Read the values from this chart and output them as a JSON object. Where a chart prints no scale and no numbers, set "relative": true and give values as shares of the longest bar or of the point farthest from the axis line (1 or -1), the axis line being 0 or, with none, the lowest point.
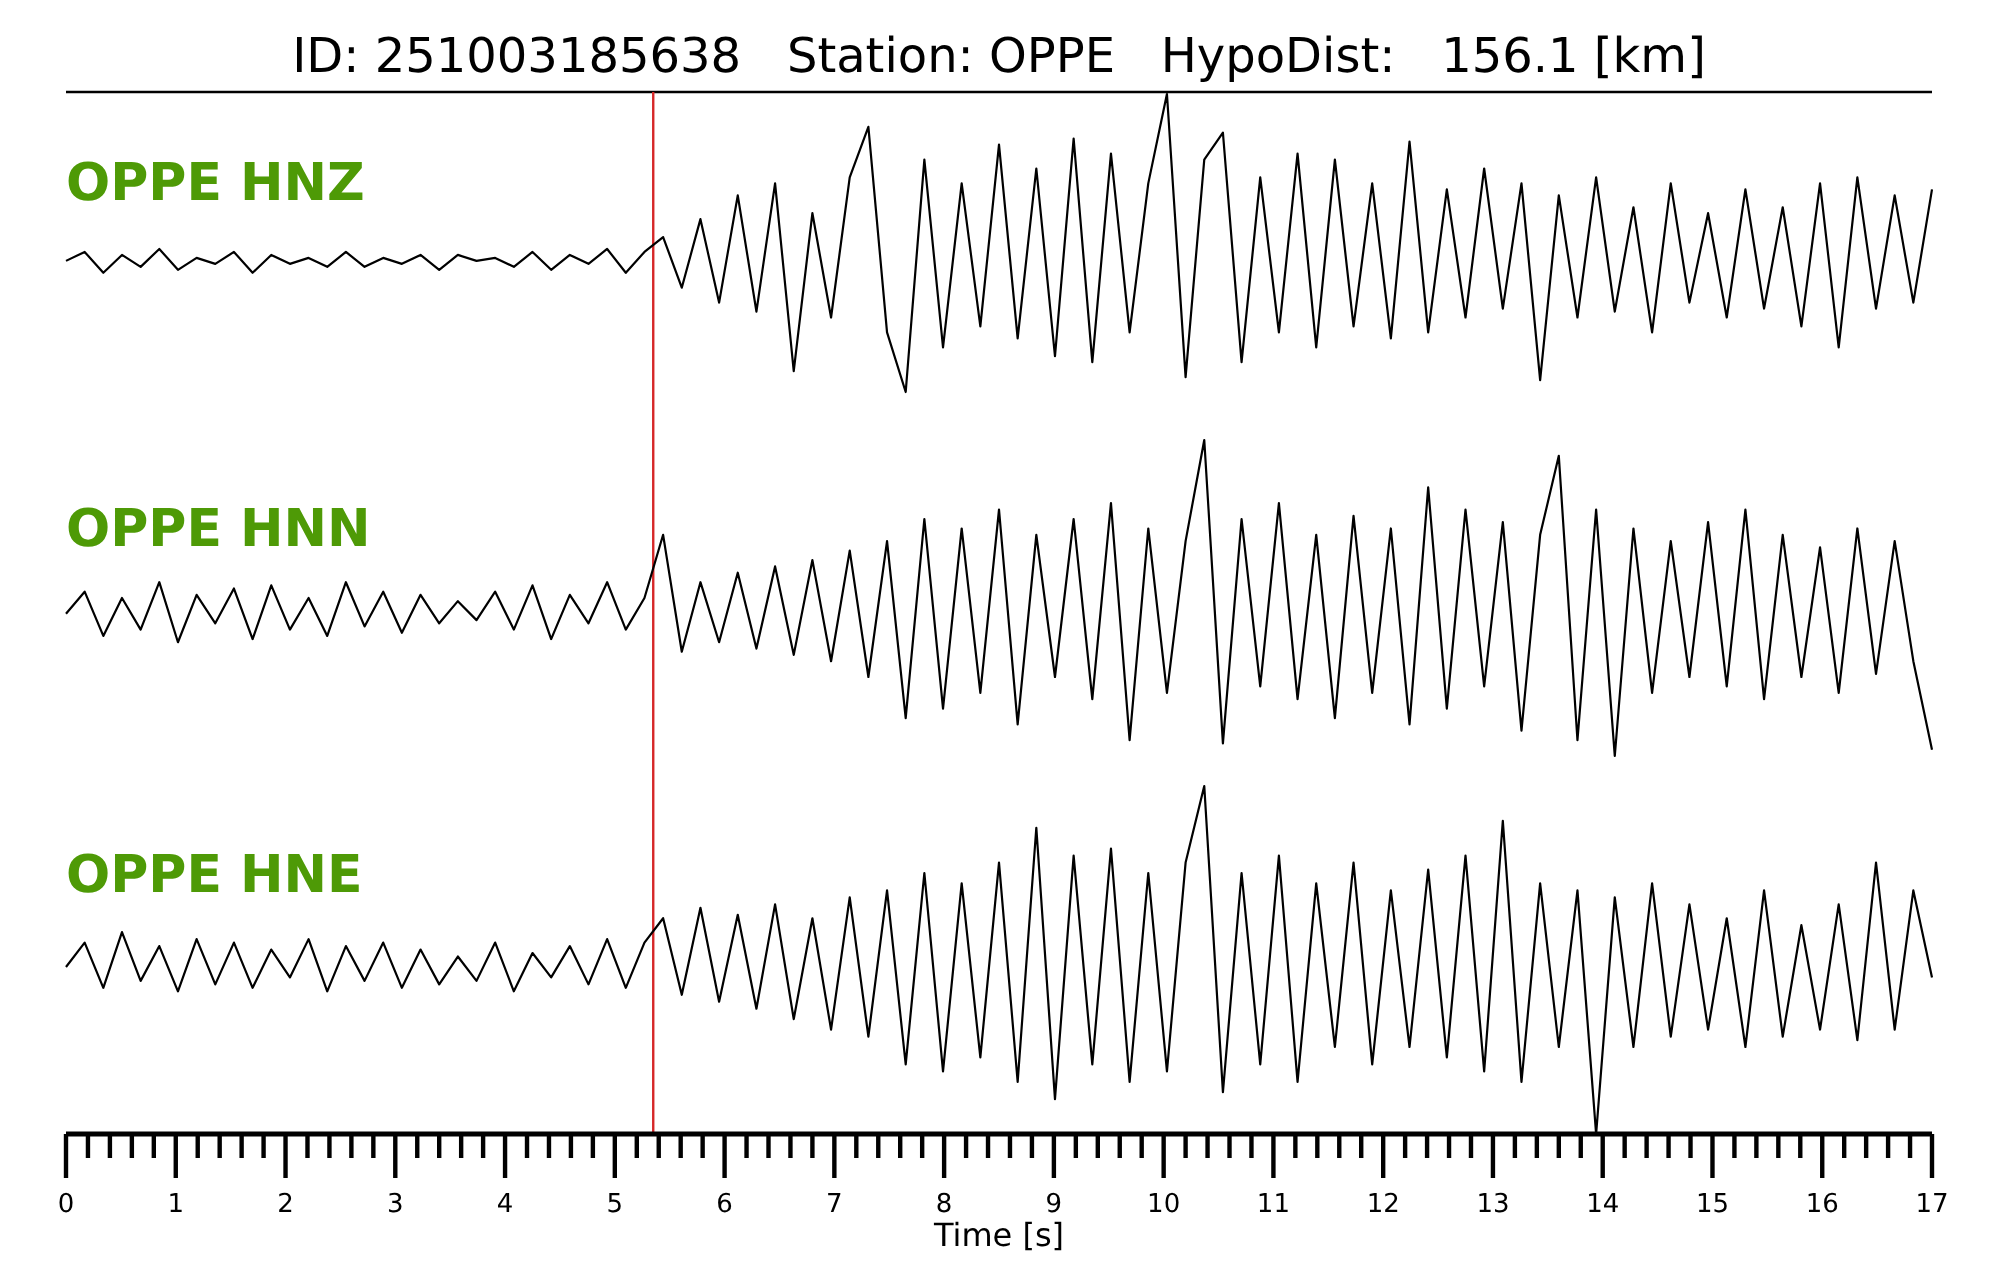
{
  "chart_data": [
    {
      "type": "line",
      "relative": true,
      "title": "ID: 251003185638   Station: OPPE   HypoDist:   156.1 [km]",
      "xlim": [
        0,
        17
      ],
      "ref_lines": [
        {
          "axis": "x",
          "value": 5.35,
          "color": "#d62728"
        }
      ],
      "series": [
        {
          "name": "OPPE HNZ",
          "color": "#000000",
          "x": [
            0,
            0.17,
            0.34,
            0.51,
            0.68,
            0.85,
            1.02,
            1.19,
            1.36,
            1.53,
            1.7,
            1.87,
            2.04,
            2.21,
            2.38,
            2.55,
            2.72,
            2.89,
            3.06,
            3.23,
            3.4,
            3.57,
            3.74,
            3.91,
            4.08,
            4.25,
            4.42,
            4.59,
            4.76,
            4.93,
            5.1,
            5.27,
            5.44,
            5.61,
            5.78,
            5.95,
            6.12,
            6.29,
            6.46,
            6.63,
            6.8,
            6.97,
            7.14,
            7.31,
            7.48,
            7.65,
            7.82,
            7.99,
            8.16,
            8.33,
            8.5,
            8.67,
            8.84,
            9.01,
            9.18,
            9.35,
            9.52,
            9.69,
            9.86,
            10.03,
            10.2,
            10.37,
            10.54,
            10.71,
            10.88,
            11.05,
            11.22,
            11.39,
            11.56,
            11.73,
            11.9,
            12.07,
            12.24,
            12.41,
            12.58,
            12.75,
            12.92,
            13.09,
            13.26,
            13.43,
            13.6,
            13.77,
            13.94,
            14.11,
            14.28,
            14.45,
            14.62,
            14.79,
            14.96,
            15.13,
            15.3,
            15.47,
            15.64,
            15.81,
            15.98,
            16.15,
            16.32,
            16.49,
            16.66,
            16.83,
            17.0
          ],
          "values": [
            0.44,
            0.47,
            0.4,
            0.46,
            0.42,
            0.48,
            0.41,
            0.45,
            0.43,
            0.47,
            0.4,
            0.46,
            0.43,
            0.45,
            0.42,
            0.47,
            0.42,
            0.45,
            0.43,
            0.46,
            0.41,
            0.46,
            0.44,
            0.45,
            0.42,
            0.47,
            0.41,
            0.46,
            0.43,
            0.48,
            0.4,
            0.47,
            0.52,
            0.35,
            0.58,
            0.3,
            0.66,
            0.27,
            0.7,
            0.07,
            0.6,
            0.25,
            0.72,
            0.89,
            0.2,
            0.0,
            0.78,
            0.15,
            0.7,
            0.22,
            0.83,
            0.18,
            0.75,
            0.12,
            0.85,
            0.1,
            0.8,
            0.2,
            0.7,
            1.0,
            0.05,
            0.78,
            0.87,
            0.1,
            0.72,
            0.2,
            0.8,
            0.15,
            0.78,
            0.22,
            0.7,
            0.18,
            0.84,
            0.2,
            0.68,
            0.25,
            0.75,
            0.28,
            0.7,
            0.04,
            0.66,
            0.25,
            0.72,
            0.27,
            0.62,
            0.2,
            0.7,
            0.3,
            0.6,
            0.25,
            0.68,
            0.28,
            0.62,
            0.22,
            0.7,
            0.15,
            0.72,
            0.28,
            0.66,
            0.3,
            0.68
          ]
        }
      ]
    },
    {
      "type": "line",
      "relative": true,
      "xlim": [
        0,
        17
      ],
      "ref_lines": [
        {
          "axis": "x",
          "value": 5.35,
          "color": "#d62728"
        }
      ],
      "series": [
        {
          "name": "OPPE HNN",
          "color": "#000000",
          "x": [
            0,
            0.17,
            0.34,
            0.51,
            0.68,
            0.85,
            1.02,
            1.19,
            1.36,
            1.53,
            1.7,
            1.87,
            2.04,
            2.21,
            2.38,
            2.55,
            2.72,
            2.89,
            3.06,
            3.23,
            3.4,
            3.57,
            3.74,
            3.91,
            4.08,
            4.25,
            4.42,
            4.59,
            4.76,
            4.93,
            5.1,
            5.27,
            5.44,
            5.61,
            5.78,
            5.95,
            6.12,
            6.29,
            6.46,
            6.63,
            6.8,
            6.97,
            7.14,
            7.31,
            7.48,
            7.65,
            7.82,
            7.99,
            8.16,
            8.33,
            8.5,
            8.67,
            8.84,
            9.01,
            9.18,
            9.35,
            9.52,
            9.69,
            9.86,
            10.03,
            10.2,
            10.37,
            10.54,
            10.71,
            10.88,
            11.05,
            11.22,
            11.39,
            11.56,
            11.73,
            11.9,
            12.07,
            12.24,
            12.41,
            12.58,
            12.75,
            12.92,
            13.09,
            13.26,
            13.43,
            13.6,
            13.77,
            13.94,
            14.11,
            14.28,
            14.45,
            14.62,
            14.79,
            14.96,
            15.13,
            15.3,
            15.47,
            15.64,
            15.81,
            15.98,
            16.15,
            16.32,
            16.49,
            16.66,
            16.83,
            17.0
          ],
          "values": [
            0.45,
            0.52,
            0.38,
            0.5,
            0.4,
            0.55,
            0.36,
            0.51,
            0.42,
            0.53,
            0.37,
            0.54,
            0.4,
            0.5,
            0.38,
            0.55,
            0.41,
            0.52,
            0.39,
            0.51,
            0.42,
            0.49,
            0.43,
            0.52,
            0.4,
            0.54,
            0.37,
            0.51,
            0.42,
            0.55,
            0.4,
            0.5,
            0.7,
            0.33,
            0.55,
            0.36,
            0.58,
            0.34,
            0.6,
            0.32,
            0.62,
            0.3,
            0.65,
            0.25,
            0.68,
            0.12,
            0.75,
            0.15,
            0.72,
            0.2,
            0.78,
            0.1,
            0.7,
            0.25,
            0.75,
            0.18,
            0.8,
            0.05,
            0.72,
            0.2,
            0.68,
            1.0,
            0.04,
            0.75,
            0.22,
            0.8,
            0.18,
            0.7,
            0.12,
            0.76,
            0.2,
            0.72,
            0.1,
            0.85,
            0.15,
            0.78,
            0.22,
            0.74,
            0.08,
            0.7,
            0.95,
            0.05,
            0.78,
            0.0,
            0.72,
            0.2,
            0.68,
            0.25,
            0.74,
            0.22,
            0.78,
            0.18,
            0.7,
            0.25,
            0.66,
            0.2,
            0.72,
            0.26,
            0.68,
            0.3,
            0.02
          ]
        }
      ]
    },
    {
      "type": "line",
      "relative": true,
      "xlim": [
        0,
        17
      ],
      "tick_labels": "x",
      "xlabel": "Time [s]",
      "xticks": [
        0,
        {
          "value": 0.2,
          "label": null
        },
        {
          "value": 0.4,
          "label": null
        },
        {
          "value": 0.6,
          "label": null
        },
        {
          "value": 0.8,
          "label": null
        },
        1,
        {
          "value": 1.2,
          "label": null
        },
        {
          "value": 1.4,
          "label": null
        },
        {
          "value": 1.6,
          "label": null
        },
        {
          "value": 1.8,
          "label": null
        },
        2,
        {
          "value": 2.2,
          "label": null
        },
        {
          "value": 2.4,
          "label": null
        },
        {
          "value": 2.6,
          "label": null
        },
        {
          "value": 2.8,
          "label": null
        },
        3,
        {
          "value": 3.2,
          "label": null
        },
        {
          "value": 3.4,
          "label": null
        },
        {
          "value": 3.6,
          "label": null
        },
        {
          "value": 3.8,
          "label": null
        },
        4,
        {
          "value": 4.2,
          "label": null
        },
        {
          "value": 4.4,
          "label": null
        },
        {
          "value": 4.6,
          "label": null
        },
        {
          "value": 4.8,
          "label": null
        },
        5,
        {
          "value": 5.2,
          "label": null
        },
        {
          "value": 5.4,
          "label": null
        },
        {
          "value": 5.6,
          "label": null
        },
        {
          "value": 5.8,
          "label": null
        },
        6,
        {
          "value": 6.2,
          "label": null
        },
        {
          "value": 6.4,
          "label": null
        },
        {
          "value": 6.6,
          "label": null
        },
        {
          "value": 6.8,
          "label": null
        },
        7,
        {
          "value": 7.2,
          "label": null
        },
        {
          "value": 7.4,
          "label": null
        },
        {
          "value": 7.6,
          "label": null
        },
        {
          "value": 7.8,
          "label": null
        },
        8,
        {
          "value": 8.2,
          "label": null
        },
        {
          "value": 8.4,
          "label": null
        },
        {
          "value": 8.6,
          "label": null
        },
        {
          "value": 8.8,
          "label": null
        },
        9,
        {
          "value": 9.2,
          "label": null
        },
        {
          "value": 9.4,
          "label": null
        },
        {
          "value": 9.6,
          "label": null
        },
        {
          "value": 9.8,
          "label": null
        },
        10,
        {
          "value": 10.2,
          "label": null
        },
        {
          "value": 10.4,
          "label": null
        },
        {
          "value": 10.6,
          "label": null
        },
        {
          "value": 10.8,
          "label": null
        },
        11,
        {
          "value": 11.2,
          "label": null
        },
        {
          "value": 11.4,
          "label": null
        },
        {
          "value": 11.6,
          "label": null
        },
        {
          "value": 11.8,
          "label": null
        },
        12,
        {
          "value": 12.2,
          "label": null
        },
        {
          "value": 12.4,
          "label": null
        },
        {
          "value": 12.6,
          "label": null
        },
        {
          "value": 12.8,
          "label": null
        },
        13,
        {
          "value": 13.2,
          "label": null
        },
        {
          "value": 13.4,
          "label": null
        },
        {
          "value": 13.6,
          "label": null
        },
        {
          "value": 13.8,
          "label": null
        },
        14,
        {
          "value": 14.2,
          "label": null
        },
        {
          "value": 14.4,
          "label": null
        },
        {
          "value": 14.6,
          "label": null
        },
        {
          "value": 14.8,
          "label": null
        },
        15,
        {
          "value": 15.2,
          "label": null
        },
        {
          "value": 15.4,
          "label": null
        },
        {
          "value": 15.6,
          "label": null
        },
        {
          "value": 15.8,
          "label": null
        },
        16,
        {
          "value": 16.2,
          "label": null
        },
        {
          "value": 16.4,
          "label": null
        },
        {
          "value": 16.6,
          "label": null
        },
        {
          "value": 16.8,
          "label": null
        },
        17
      ],
      "ref_lines": [
        {
          "axis": "x",
          "value": 5.35,
          "color": "#d62728"
        }
      ],
      "series": [
        {
          "name": "OPPE HNE",
          "color": "#000000",
          "x": [
            0,
            0.17,
            0.34,
            0.51,
            0.68,
            0.85,
            1.02,
            1.19,
            1.36,
            1.53,
            1.7,
            1.87,
            2.04,
            2.21,
            2.38,
            2.55,
            2.72,
            2.89,
            3.06,
            3.23,
            3.4,
            3.57,
            3.74,
            3.91,
            4.08,
            4.25,
            4.42,
            4.59,
            4.76,
            4.93,
            5.1,
            5.27,
            5.44,
            5.61,
            5.78,
            5.95,
            6.12,
            6.29,
            6.46,
            6.63,
            6.8,
            6.97,
            7.14,
            7.31,
            7.48,
            7.65,
            7.82,
            7.99,
            8.16,
            8.33,
            8.5,
            8.67,
            8.84,
            9.01,
            9.18,
            9.35,
            9.52,
            9.69,
            9.86,
            10.03,
            10.2,
            10.37,
            10.54,
            10.71,
            10.88,
            11.05,
            11.22,
            11.39,
            11.56,
            11.73,
            11.9,
            12.07,
            12.24,
            12.41,
            12.58,
            12.75,
            12.92,
            13.09,
            13.26,
            13.43,
            13.6,
            13.77,
            13.94,
            14.11,
            14.28,
            14.45,
            14.62,
            14.79,
            14.96,
            15.13,
            15.3,
            15.47,
            15.64,
            15.81,
            15.98,
            16.15,
            16.32,
            16.49,
            16.66,
            16.83,
            17.0
          ],
          "values": [
            0.48,
            0.55,
            0.42,
            0.58,
            0.44,
            0.54,
            0.41,
            0.56,
            0.43,
            0.55,
            0.42,
            0.53,
            0.45,
            0.56,
            0.41,
            0.54,
            0.44,
            0.55,
            0.42,
            0.53,
            0.43,
            0.51,
            0.44,
            0.55,
            0.41,
            0.52,
            0.45,
            0.54,
            0.43,
            0.56,
            0.42,
            0.55,
            0.62,
            0.4,
            0.65,
            0.38,
            0.63,
            0.36,
            0.66,
            0.33,
            0.62,
            0.3,
            0.68,
            0.28,
            0.7,
            0.2,
            0.75,
            0.18,
            0.72,
            0.22,
            0.78,
            0.15,
            0.88,
            0.1,
            0.8,
            0.2,
            0.82,
            0.15,
            0.75,
            0.18,
            0.78,
            1.0,
            0.12,
            0.75,
            0.2,
            0.8,
            0.15,
            0.72,
            0.25,
            0.78,
            0.2,
            0.7,
            0.25,
            0.76,
            0.22,
            0.8,
            0.18,
            0.9,
            0.15,
            0.72,
            0.25,
            0.7,
            0.0,
            0.68,
            0.25,
            0.72,
            0.28,
            0.66,
            0.3,
            0.62,
            0.25,
            0.7,
            0.28,
            0.6,
            0.3,
            0.66,
            0.27,
            0.78,
            0.3,
            0.7,
            0.45
          ]
        }
      ]
    }
  ]
}
